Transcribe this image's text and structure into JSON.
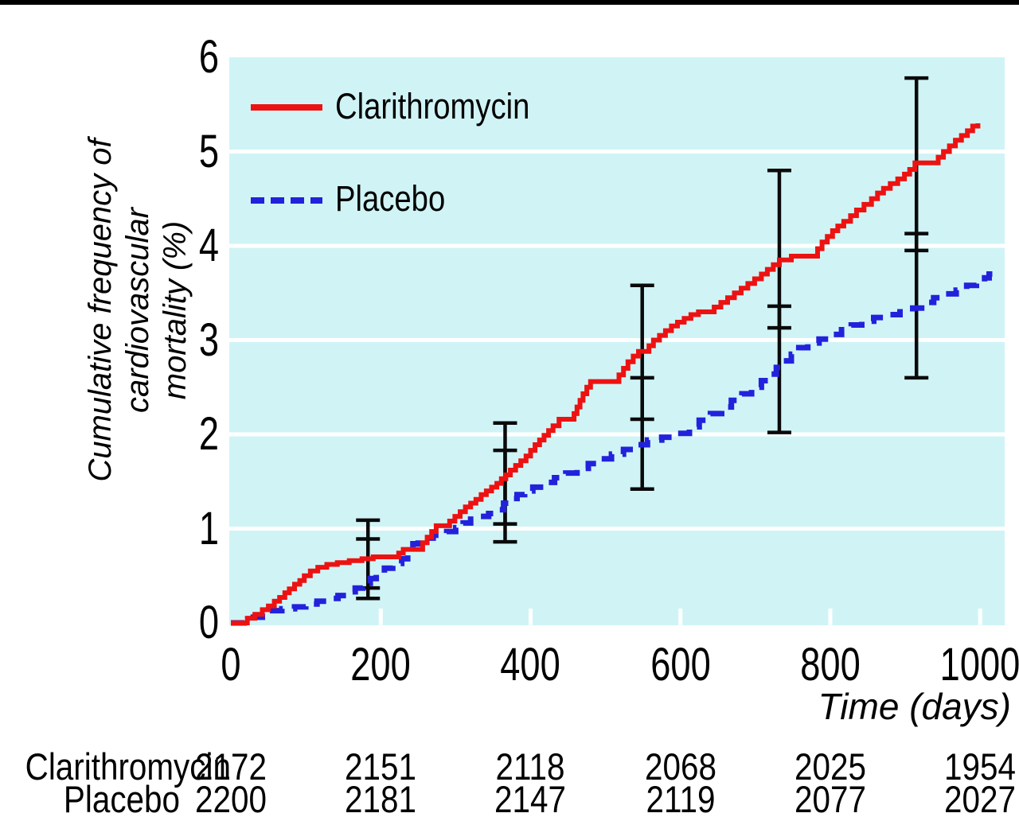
{
  "labels": {
    "y_axis_line1": "Cumulative frequency of cardiovascular",
    "y_axis_line2": "mortality (%)",
    "x_axis_title": "Time (days)"
  },
  "colors": {
    "clarithromycin_red": "#ED1212",
    "placebo_blue": "#2222DC",
    "plot_background": "#D0F4F6",
    "gridline_white": "#FFFFFF",
    "error_bar_black": "#0A0A0A",
    "text_black": "#000000",
    "top_bar_black": "#000000"
  },
  "chart_data": {
    "type": "line",
    "title": "",
    "xlabel": "Time (days)",
    "ylabel": "Cumulative frequency of cardiovascular mortality (%)",
    "xlim": [
      0,
      1033
    ],
    "ylim": [
      0,
      6
    ],
    "xticks": [
      0,
      200,
      400,
      600,
      800,
      1000
    ],
    "yticks": [
      0,
      1,
      2,
      3,
      4,
      5,
      6
    ],
    "grid": "horizontal white gridlines on pale cyan panel",
    "legend_position": "top-left inside plot",
    "series": [
      {
        "name": "Clarithromycin",
        "color": "#ED1212",
        "line_style": "solid",
        "step_points": [
          [
            0,
            0
          ],
          [
            22,
            0.05
          ],
          [
            32,
            0.09
          ],
          [
            42,
            0.14
          ],
          [
            50,
            0.18
          ],
          [
            58,
            0.23
          ],
          [
            65,
            0.27
          ],
          [
            72,
            0.32
          ],
          [
            78,
            0.36
          ],
          [
            85,
            0.41
          ],
          [
            92,
            0.45
          ],
          [
            98,
            0.5
          ],
          [
            106,
            0.55
          ],
          [
            116,
            0.59
          ],
          [
            128,
            0.62
          ],
          [
            142,
            0.64
          ],
          [
            158,
            0.66
          ],
          [
            175,
            0.68
          ],
          [
            190,
            0.7
          ],
          [
            224,
            0.74
          ],
          [
            230,
            0.78
          ],
          [
            256,
            0.85
          ],
          [
            262,
            0.91
          ],
          [
            268,
            0.97
          ],
          [
            274,
            1.03
          ],
          [
            292,
            1.08
          ],
          [
            299,
            1.13
          ],
          [
            306,
            1.18
          ],
          [
            313,
            1.23
          ],
          [
            320,
            1.27
          ],
          [
            327,
            1.31
          ],
          [
            334,
            1.36
          ],
          [
            341,
            1.4
          ],
          [
            348,
            1.44
          ],
          [
            355,
            1.48
          ],
          [
            361,
            1.53
          ],
          [
            367,
            1.57
          ],
          [
            373,
            1.62
          ],
          [
            380,
            1.67
          ],
          [
            387,
            1.72
          ],
          [
            394,
            1.77
          ],
          [
            400,
            1.83
          ],
          [
            406,
            1.89
          ],
          [
            412,
            1.94
          ],
          [
            418,
            1.99
          ],
          [
            424,
            2.04
          ],
          [
            430,
            2.09
          ],
          [
            438,
            2.16
          ],
          [
            458,
            2.22
          ],
          [
            462,
            2.29
          ],
          [
            466,
            2.36
          ],
          [
            470,
            2.43
          ],
          [
            475,
            2.5
          ],
          [
            480,
            2.56
          ],
          [
            518,
            2.63
          ],
          [
            524,
            2.7
          ],
          [
            530,
            2.77
          ],
          [
            537,
            2.83
          ],
          [
            544,
            2.88
          ],
          [
            558,
            2.94
          ],
          [
            564,
            3.0
          ],
          [
            572,
            3.05
          ],
          [
            580,
            3.1
          ],
          [
            588,
            3.15
          ],
          [
            596,
            3.19
          ],
          [
            605,
            3.23
          ],
          [
            614,
            3.27
          ],
          [
            624,
            3.3
          ],
          [
            645,
            3.35
          ],
          [
            654,
            3.4
          ],
          [
            663,
            3.45
          ],
          [
            672,
            3.5
          ],
          [
            681,
            3.55
          ],
          [
            690,
            3.6
          ],
          [
            699,
            3.65
          ],
          [
            708,
            3.7
          ],
          [
            716,
            3.75
          ],
          [
            724,
            3.8
          ],
          [
            732,
            3.85
          ],
          [
            748,
            3.89
          ],
          [
            783,
            3.97
          ],
          [
            789,
            4.04
          ],
          [
            796,
            4.1
          ],
          [
            803,
            4.16
          ],
          [
            810,
            4.21
          ],
          [
            818,
            4.26
          ],
          [
            827,
            4.32
          ],
          [
            835,
            4.38
          ],
          [
            845,
            4.44
          ],
          [
            855,
            4.5
          ],
          [
            863,
            4.56
          ],
          [
            871,
            4.61
          ],
          [
            880,
            4.66
          ],
          [
            890,
            4.71
          ],
          [
            899,
            4.76
          ],
          [
            906,
            4.81
          ],
          [
            913,
            4.88
          ],
          [
            944,
            4.94
          ],
          [
            951,
            5.0
          ],
          [
            959,
            5.06
          ],
          [
            967,
            5.12
          ],
          [
            975,
            5.17
          ],
          [
            983,
            5.22
          ],
          [
            990,
            5.27
          ],
          [
            997,
            5.3
          ]
        ]
      },
      {
        "name": "Placebo",
        "color": "#2222DC",
        "line_style": "dashed",
        "step_points": [
          [
            0,
            0
          ],
          [
            18,
            0.03
          ],
          [
            30,
            0.06
          ],
          [
            42,
            0.1
          ],
          [
            52,
            0.13
          ],
          [
            68,
            0.15
          ],
          [
            85,
            0.17
          ],
          [
            100,
            0.2
          ],
          [
            115,
            0.23
          ],
          [
            130,
            0.26
          ],
          [
            143,
            0.29
          ],
          [
            155,
            0.33
          ],
          [
            166,
            0.37
          ],
          [
            176,
            0.42
          ],
          [
            186,
            0.47
          ],
          [
            194,
            0.52
          ],
          [
            205,
            0.58
          ],
          [
            216,
            0.63
          ],
          [
            228,
            0.68
          ],
          [
            236,
            0.76
          ],
          [
            243,
            0.84
          ],
          [
            250,
            0.9
          ],
          [
            270,
            0.93
          ],
          [
            288,
            0.97
          ],
          [
            300,
            1.01
          ],
          [
            310,
            1.06
          ],
          [
            320,
            1.1
          ],
          [
            332,
            1.13
          ],
          [
            344,
            1.16
          ],
          [
            356,
            1.2
          ],
          [
            364,
            1.27
          ],
          [
            372,
            1.32
          ],
          [
            382,
            1.36
          ],
          [
            392,
            1.4
          ],
          [
            403,
            1.44
          ],
          [
            417,
            1.49
          ],
          [
            432,
            1.54
          ],
          [
            447,
            1.59
          ],
          [
            462,
            1.64
          ],
          [
            477,
            1.69
          ],
          [
            492,
            1.74
          ],
          [
            508,
            1.79
          ],
          [
            524,
            1.84
          ],
          [
            540,
            1.89
          ],
          [
            556,
            1.94
          ],
          [
            575,
            1.97
          ],
          [
            595,
            2.01
          ],
          [
            612,
            2.08
          ],
          [
            625,
            2.15
          ],
          [
            640,
            2.22
          ],
          [
            655,
            2.29
          ],
          [
            668,
            2.36
          ],
          [
            682,
            2.43
          ],
          [
            695,
            2.5
          ],
          [
            708,
            2.57
          ],
          [
            720,
            2.64
          ],
          [
            728,
            2.71
          ],
          [
            738,
            2.78
          ],
          [
            748,
            2.85
          ],
          [
            758,
            2.92
          ],
          [
            770,
            2.97
          ],
          [
            785,
            3.01
          ],
          [
            800,
            3.06
          ],
          [
            815,
            3.11
          ],
          [
            828,
            3.16
          ],
          [
            842,
            3.2
          ],
          [
            858,
            3.24
          ],
          [
            875,
            3.27
          ],
          [
            893,
            3.3
          ],
          [
            910,
            3.34
          ],
          [
            926,
            3.4
          ],
          [
            938,
            3.45
          ],
          [
            952,
            3.49
          ],
          [
            968,
            3.53
          ],
          [
            982,
            3.58
          ],
          [
            995,
            3.62
          ],
          [
            1006,
            3.66
          ],
          [
            1012,
            3.7
          ]
        ]
      }
    ],
    "error_bars_95ci": [
      {
        "day": 183,
        "series": "Clarithromycin",
        "lo": 0.37,
        "hi": 1.09
      },
      {
        "day": 183,
        "series": "Placebo",
        "lo": 0.26,
        "hi": 0.89
      },
      {
        "day": 366,
        "series": "Clarithromycin",
        "lo": 1.05,
        "hi": 2.12
      },
      {
        "day": 366,
        "series": "Placebo",
        "lo": 0.86,
        "hi": 1.83
      },
      {
        "day": 549,
        "series": "Clarithromycin",
        "lo": 2.16,
        "hi": 3.58
      },
      {
        "day": 549,
        "series": "Placebo",
        "lo": 1.42,
        "hi": 2.6
      },
      {
        "day": 732,
        "series": "Clarithromycin",
        "lo": 3.13,
        "hi": 4.8
      },
      {
        "day": 732,
        "series": "Placebo",
        "lo": 2.02,
        "hi": 3.36
      },
      {
        "day": 915,
        "series": "Clarithromycin",
        "lo": 3.95,
        "hi": 5.78
      },
      {
        "day": 915,
        "series": "Placebo",
        "lo": 2.6,
        "hi": 4.13
      }
    ]
  },
  "risk_table": {
    "column_days": [
      0,
      200,
      400,
      600,
      800,
      1000
    ],
    "rows": [
      {
        "label": "Clarithromycin",
        "values": [
          "2172",
          "2151",
          "2118",
          "2068",
          "2025",
          "1954"
        ]
      },
      {
        "label": "Placebo",
        "values": [
          "2200",
          "2181",
          "2147",
          "2119",
          "2077",
          "2027"
        ]
      }
    ]
  }
}
